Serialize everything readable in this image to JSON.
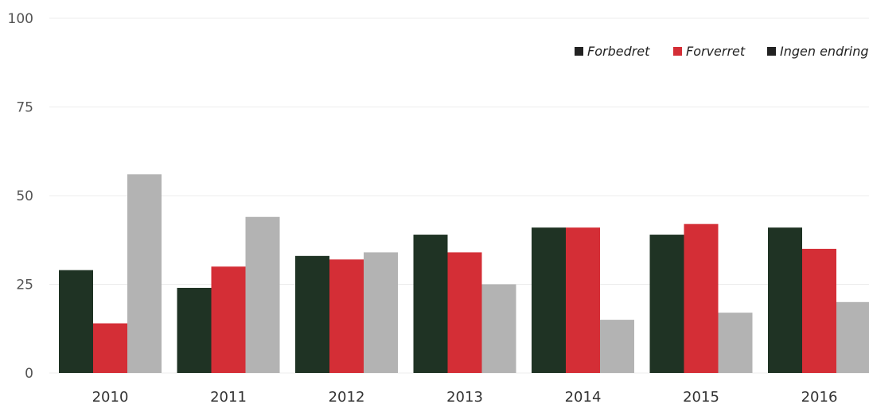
{
  "chart_data": {
    "type": "bar",
    "categories": [
      "2010",
      "2011",
      "2012",
      "2013",
      "2014",
      "2015",
      "2016"
    ],
    "series": [
      {
        "name": "Forbedret",
        "values": [
          29,
          24,
          33,
          39,
          41,
          39,
          41
        ]
      },
      {
        "name": "Forverret",
        "values": [
          14,
          30,
          32,
          34,
          41,
          42,
          35
        ]
      },
      {
        "name": "Ingen endring",
        "values": [
          56,
          44,
          34,
          25,
          15,
          17,
          20
        ]
      }
    ],
    "colors": [
      "#1f3324",
      "#d42e36",
      "#b3b3b3"
    ],
    "legend_swatch_colors": [
      "#222222",
      "#d42e36",
      "#222222"
    ],
    "yticks": [
      "0",
      "25",
      "50",
      "75",
      "100"
    ],
    "ylim": [
      0,
      100
    ],
    "grid": true,
    "legend_position": "top-right",
    "title": "",
    "xlabel": "",
    "ylabel": ""
  }
}
